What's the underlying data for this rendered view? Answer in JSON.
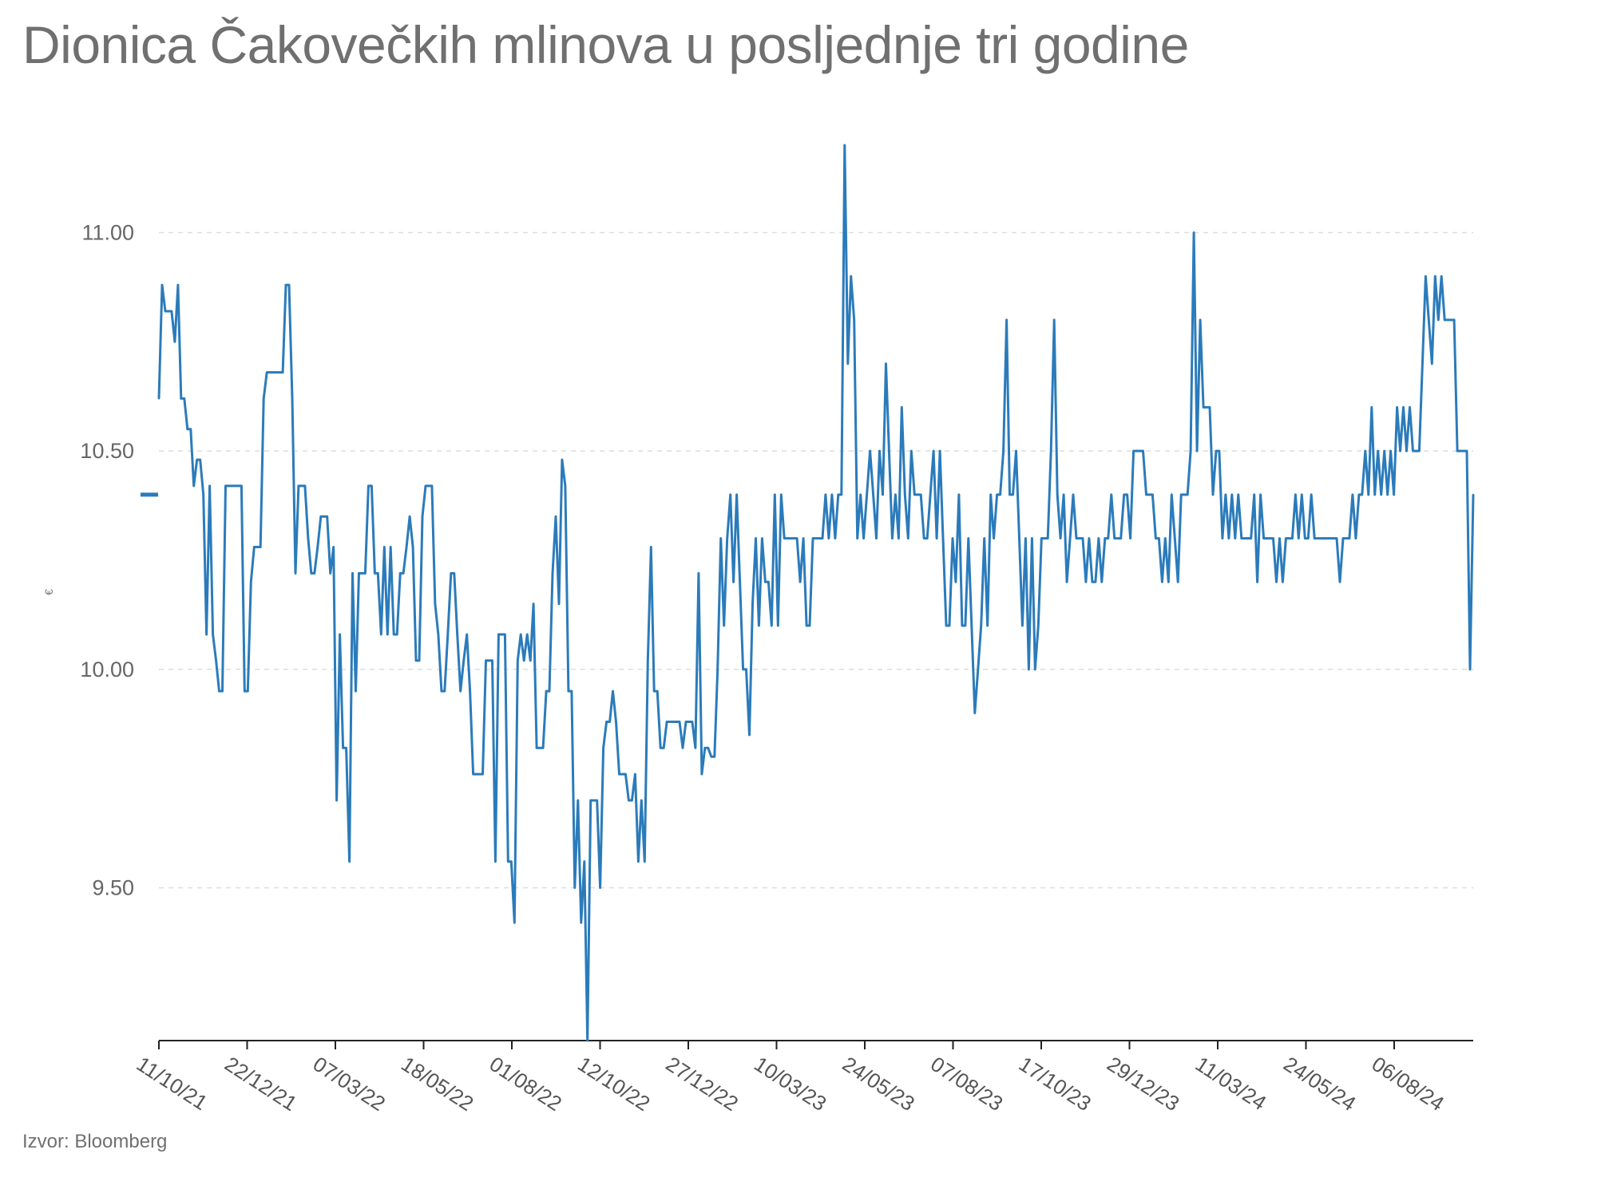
{
  "title": "Dionica Čakovečkih mlinova u posljednje tri godine",
  "source": "Izvor: Bloomberg",
  "colors": {
    "line": "#2b7bba",
    "grid": "#dddddd",
    "axis": "#222222",
    "text": "#707070"
  },
  "chart_data": {
    "type": "line",
    "title": "Dionica Čakovečkih mlinova u posljednje tri godine",
    "ylabel": "€",
    "xlabel": "",
    "ylim": [
      9.15,
      11.2
    ],
    "y_ticks": [
      9.5,
      10.0,
      10.5,
      11.0
    ],
    "y_tick_labels": [
      "9.50",
      "10.00",
      "10.50",
      "11.00"
    ],
    "x_tick_labels": [
      "11/10/21",
      "22/12/21",
      "07/03/22",
      "18/05/22",
      "01/08/22",
      "12/10/22",
      "27/12/22",
      "10/03/23",
      "24/05/23",
      "07/08/23",
      "17/10/23",
      "29/12/23",
      "11/03/24",
      "24/05/24",
      "06/08/24"
    ],
    "grid": "horizontal dashed",
    "legend": "none",
    "series": [
      {
        "values": [
          10.62,
          10.88,
          10.82,
          10.82,
          10.82,
          10.75,
          10.88,
          10.62,
          10.62,
          10.55,
          10.55,
          10.42,
          10.48,
          10.48,
          10.4,
          10.08,
          10.42,
          10.08,
          10.02,
          9.95,
          9.95,
          10.42,
          10.42,
          10.42,
          10.42,
          10.42,
          10.42,
          9.95,
          9.95,
          10.2,
          10.28,
          10.28,
          10.28,
          10.62,
          10.68,
          10.68,
          10.68,
          10.68,
          10.68,
          10.68,
          10.88,
          10.88,
          10.62,
          10.22,
          10.42,
          10.42,
          10.42,
          10.3,
          10.22,
          10.22,
          10.28,
          10.35,
          10.35,
          10.35,
          10.22,
          10.28,
          9.7,
          10.08,
          9.82,
          9.82,
          9.56,
          10.22,
          9.95,
          10.22,
          10.22,
          10.22,
          10.42,
          10.42,
          10.22,
          10.22,
          10.08,
          10.28,
          10.08,
          10.28,
          10.08,
          10.08,
          10.22,
          10.22,
          10.28,
          10.35,
          10.28,
          10.02,
          10.02,
          10.35,
          10.42,
          10.42,
          10.42,
          10.15,
          10.08,
          9.95,
          9.95,
          10.08,
          10.22,
          10.22,
          10.08,
          9.95,
          10.02,
          10.08,
          9.95,
          9.76,
          9.76,
          9.76,
          9.76,
          10.02,
          10.02,
          10.02,
          9.56,
          10.08,
          10.08,
          10.08,
          9.56,
          9.56,
          9.42,
          10.02,
          10.08,
          10.02,
          10.08,
          10.02,
          10.15,
          9.82,
          9.82,
          9.82,
          9.95,
          9.95,
          10.22,
          10.35,
          10.15,
          10.48,
          10.42,
          9.95,
          9.95,
          9.5,
          9.7,
          9.42,
          9.56,
          9.15,
          9.7,
          9.7,
          9.7,
          9.5,
          9.82,
          9.88,
          9.88,
          9.95,
          9.88,
          9.76,
          9.76,
          9.76,
          9.7,
          9.7,
          9.76,
          9.56,
          9.7,
          9.56,
          10.02,
          10.28,
          9.95,
          9.95,
          9.82,
          9.82,
          9.88,
          9.88,
          9.88,
          9.88,
          9.88,
          9.82,
          9.88,
          9.88,
          9.88,
          9.82,
          10.22,
          9.76,
          9.82,
          9.82,
          9.8,
          9.8,
          10.0,
          10.3,
          10.1,
          10.3,
          10.4,
          10.2,
          10.4,
          10.2,
          10.0,
          10.0,
          9.85,
          10.15,
          10.3,
          10.1,
          10.3,
          10.2,
          10.2,
          10.1,
          10.4,
          10.1,
          10.4,
          10.3,
          10.3,
          10.3,
          10.3,
          10.3,
          10.2,
          10.3,
          10.1,
          10.1,
          10.3,
          10.3,
          10.3,
          10.3,
          10.4,
          10.3,
          10.4,
          10.3,
          10.4,
          10.4,
          11.2,
          10.7,
          10.9,
          10.8,
          10.3,
          10.4,
          10.3,
          10.4,
          10.5,
          10.4,
          10.3,
          10.5,
          10.4,
          10.7,
          10.5,
          10.3,
          10.4,
          10.3,
          10.6,
          10.4,
          10.3,
          10.5,
          10.4,
          10.4,
          10.4,
          10.3,
          10.3,
          10.4,
          10.5,
          10.3,
          10.5,
          10.3,
          10.1,
          10.1,
          10.3,
          10.2,
          10.4,
          10.1,
          10.1,
          10.3,
          10.1,
          9.9,
          10.0,
          10.1,
          10.3,
          10.1,
          10.4,
          10.3,
          10.4,
          10.4,
          10.5,
          10.8,
          10.4,
          10.4,
          10.5,
          10.3,
          10.1,
          10.3,
          10.0,
          10.3,
          10.0,
          10.1,
          10.3,
          10.3,
          10.3,
          10.5,
          10.8,
          10.4,
          10.3,
          10.4,
          10.2,
          10.3,
          10.4,
          10.3,
          10.3,
          10.3,
          10.2,
          10.3,
          10.2,
          10.2,
          10.3,
          10.2,
          10.3,
          10.3,
          10.4,
          10.3,
          10.3,
          10.3,
          10.4,
          10.4,
          10.3,
          10.5,
          10.5,
          10.5,
          10.5,
          10.4,
          10.4,
          10.4,
          10.3,
          10.3,
          10.2,
          10.3,
          10.2,
          10.4,
          10.3,
          10.2,
          10.4,
          10.4,
          10.4,
          10.5,
          11.0,
          10.5,
          10.8,
          10.6,
          10.6,
          10.6,
          10.4,
          10.5,
          10.5,
          10.3,
          10.4,
          10.3,
          10.4,
          10.3,
          10.4,
          10.3,
          10.3,
          10.3,
          10.3,
          10.4,
          10.2,
          10.4,
          10.3,
          10.3,
          10.3,
          10.3,
          10.2,
          10.3,
          10.2,
          10.3,
          10.3,
          10.3,
          10.4,
          10.3,
          10.4,
          10.3,
          10.3,
          10.4,
          10.3,
          10.3,
          10.3,
          10.3,
          10.3,
          10.3,
          10.3,
          10.3,
          10.2,
          10.3,
          10.3,
          10.3,
          10.4,
          10.3,
          10.4,
          10.4,
          10.5,
          10.4,
          10.6,
          10.4,
          10.5,
          10.4,
          10.5,
          10.4,
          10.5,
          10.4,
          10.6,
          10.5,
          10.6,
          10.5,
          10.6,
          10.5,
          10.5,
          10.5,
          10.7,
          10.9,
          10.8,
          10.7,
          10.9,
          10.8,
          10.9,
          10.8,
          10.8,
          10.8,
          10.8,
          10.5,
          10.5,
          10.5,
          10.5,
          10.0,
          10.4
        ]
      }
    ]
  }
}
